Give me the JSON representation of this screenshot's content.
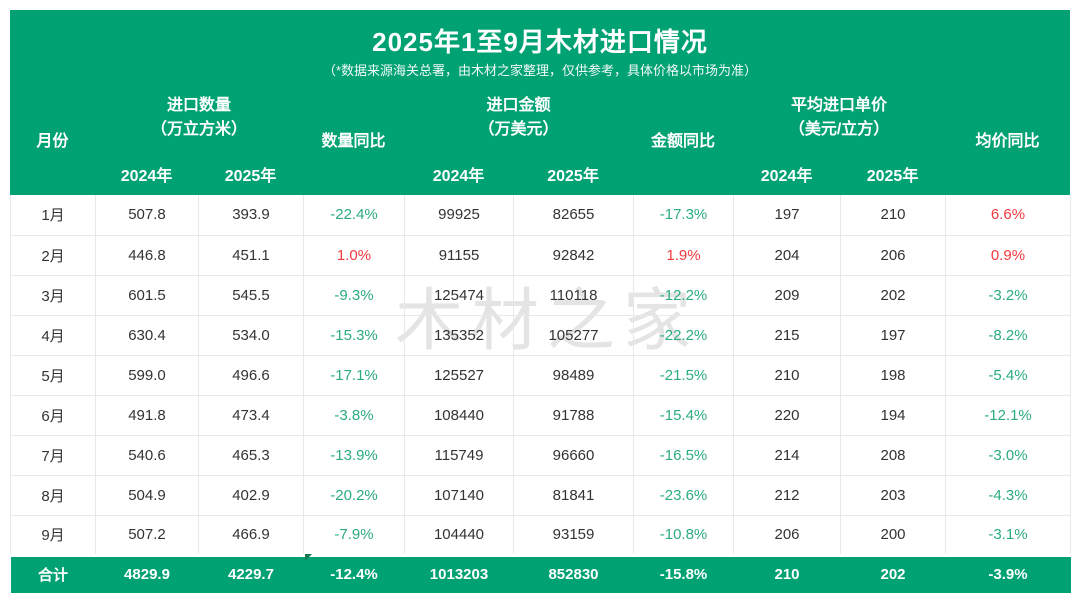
{
  "title": "2025年1至9月木材进口情况",
  "subtitle": "（*数据来源海关总署，由木材之家整理，仅供参考，具体价格以市场为准）",
  "watermark": "木材之家",
  "colors": {
    "brand_green": "#00a173",
    "decline_text": "#2cab7f",
    "increase_text": "#f13a3e",
    "grid_line": "#e8e8e8",
    "body_text": "#333333"
  },
  "header": {
    "month": "月份",
    "qty_title": "进口数量",
    "qty_unit": "（万立方米）",
    "qty_yoy": "数量同比",
    "amt_title": "进口金额",
    "amt_unit": "（万美元）",
    "amt_yoy": "金额同比",
    "price_title": "平均进口单价",
    "price_unit": "（美元/立方）",
    "price_yoy": "均价同比",
    "year_2024": "2024年",
    "year_2025": "2025年"
  },
  "rows": [
    {
      "month": "1月",
      "qty_2024": "507.8",
      "qty_2025": "393.9",
      "qty_yoy": "-22.4%",
      "amt_2024": "99925",
      "amt_2025": "82655",
      "amt_yoy": "-17.3%",
      "price_2024": "197",
      "price_2025": "210",
      "price_yoy": "6.6%"
    },
    {
      "month": "2月",
      "qty_2024": "446.8",
      "qty_2025": "451.1",
      "qty_yoy": "1.0%",
      "amt_2024": "91155",
      "amt_2025": "92842",
      "amt_yoy": "1.9%",
      "price_2024": "204",
      "price_2025": "206",
      "price_yoy": "0.9%"
    },
    {
      "month": "3月",
      "qty_2024": "601.5",
      "qty_2025": "545.5",
      "qty_yoy": "-9.3%",
      "amt_2024": "125474",
      "amt_2025": "110118",
      "amt_yoy": "-12.2%",
      "price_2024": "209",
      "price_2025": "202",
      "price_yoy": "-3.2%"
    },
    {
      "month": "4月",
      "qty_2024": "630.4",
      "qty_2025": "534.0",
      "qty_yoy": "-15.3%",
      "amt_2024": "135352",
      "amt_2025": "105277",
      "amt_yoy": "-22.2%",
      "price_2024": "215",
      "price_2025": "197",
      "price_yoy": "-8.2%"
    },
    {
      "month": "5月",
      "qty_2024": "599.0",
      "qty_2025": "496.6",
      "qty_yoy": "-17.1%",
      "amt_2024": "125527",
      "amt_2025": "98489",
      "amt_yoy": "-21.5%",
      "price_2024": "210",
      "price_2025": "198",
      "price_yoy": "-5.4%"
    },
    {
      "month": "6月",
      "qty_2024": "491.8",
      "qty_2025": "473.4",
      "qty_yoy": "-3.8%",
      "amt_2024": "108440",
      "amt_2025": "91788",
      "amt_yoy": "-15.4%",
      "price_2024": "220",
      "price_2025": "194",
      "price_yoy": "-12.1%"
    },
    {
      "month": "7月",
      "qty_2024": "540.6",
      "qty_2025": "465.3",
      "qty_yoy": "-13.9%",
      "amt_2024": "115749",
      "amt_2025": "96660",
      "amt_yoy": "-16.5%",
      "price_2024": "214",
      "price_2025": "208",
      "price_yoy": "-3.0%"
    },
    {
      "month": "8月",
      "qty_2024": "504.9",
      "qty_2025": "402.9",
      "qty_yoy": "-20.2%",
      "amt_2024": "107140",
      "amt_2025": "81841",
      "amt_yoy": "-23.6%",
      "price_2024": "212",
      "price_2025": "203",
      "price_yoy": "-4.3%"
    },
    {
      "month": "9月",
      "qty_2024": "507.2",
      "qty_2025": "466.9",
      "qty_yoy": "-7.9%",
      "amt_2024": "104440",
      "amt_2025": "93159",
      "amt_yoy": "-10.8%",
      "price_2024": "206",
      "price_2025": "200",
      "price_yoy": "-3.1%"
    }
  ],
  "total": {
    "month": "合计",
    "qty_2024": "4829.9",
    "qty_2025": "4229.7",
    "qty_yoy": "-12.4%",
    "amt_2024": "1013203",
    "amt_2025": "852830",
    "amt_yoy": "-15.8%",
    "price_2024": "210",
    "price_2025": "202",
    "price_yoy": "-3.9%"
  },
  "chart_data": {
    "type": "table",
    "title": "2025年1至9月木材进口情况",
    "subtitle": "（*数据来源海关总署，由木材之家整理，仅供参考，具体价格以市场为准）",
    "columns": [
      "月份",
      "进口数量（万立方米）2024年",
      "进口数量（万立方米）2025年",
      "数量同比",
      "进口金额（万美元）2024年",
      "进口金额（万美元）2025年",
      "金额同比",
      "平均进口单价（美元/立方）2024年",
      "平均进口单价（美元/立方）2025年",
      "均价同比"
    ],
    "rows": [
      [
        "1月",
        507.8,
        393.9,
        "-22.4%",
        99925,
        82655,
        "-17.3%",
        197,
        210,
        "6.6%"
      ],
      [
        "2月",
        446.8,
        451.1,
        "1.0%",
        91155,
        92842,
        "1.9%",
        204,
        206,
        "0.9%"
      ],
      [
        "3月",
        601.5,
        545.5,
        "-9.3%",
        125474,
        110118,
        "-12.2%",
        209,
        202,
        "-3.2%"
      ],
      [
        "4月",
        630.4,
        534.0,
        "-15.3%",
        135352,
        105277,
        "-22.2%",
        215,
        197,
        "-8.2%"
      ],
      [
        "5月",
        599.0,
        496.6,
        "-17.1%",
        125527,
        98489,
        "-21.5%",
        210,
        198,
        "-5.4%"
      ],
      [
        "6月",
        491.8,
        473.4,
        "-3.8%",
        108440,
        91788,
        "-15.4%",
        220,
        194,
        "-12.1%"
      ],
      [
        "7月",
        540.6,
        465.3,
        "-13.9%",
        115749,
        96660,
        "-16.5%",
        214,
        208,
        "-3.0%"
      ],
      [
        "8月",
        504.9,
        402.9,
        "-20.2%",
        107140,
        81841,
        "-23.6%",
        212,
        203,
        "-4.3%"
      ],
      [
        "9月",
        507.2,
        466.9,
        "-7.9%",
        104440,
        93159,
        "-10.8%",
        206,
        200,
        "-3.1%"
      ]
    ],
    "total_row": [
      "合计",
      4829.9,
      4229.7,
      "-12.4%",
      1013203,
      852830,
      "-15.8%",
      210,
      202,
      "-3.9%"
    ],
    "notes": "负值同比以绿色显示，正值同比以红色显示；合计行为绿色底白色字"
  }
}
